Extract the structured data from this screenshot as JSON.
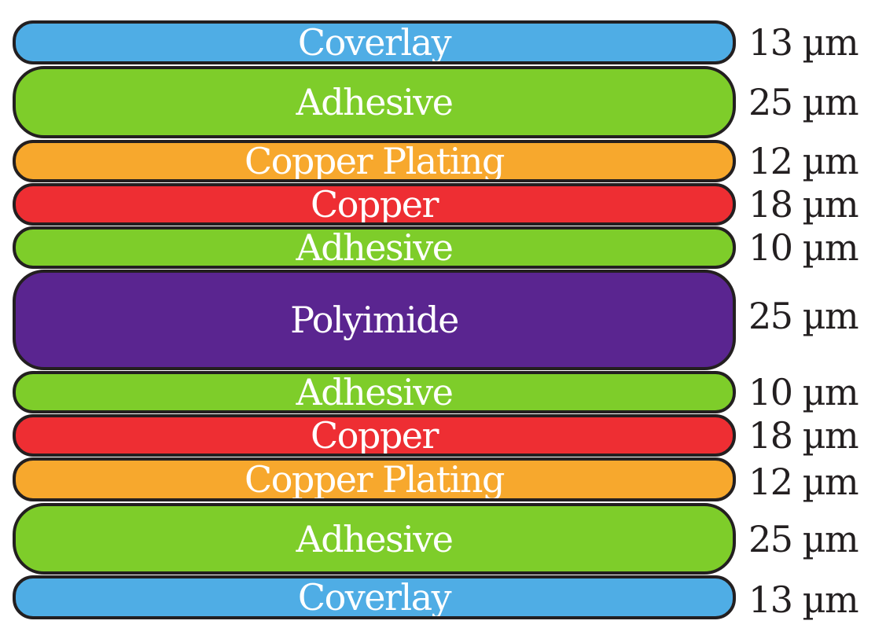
{
  "stackup": {
    "layers": [
      {
        "material": "Coverlay",
        "thickness": "13 µm",
        "color": "#4fade5"
      },
      {
        "material": "Adhesive",
        "thickness": "25 µm",
        "color": "#7ecd2a"
      },
      {
        "material": "Copper Plating",
        "thickness": "12 µm",
        "color": "#f7a82d"
      },
      {
        "material": "Copper",
        "thickness": "18 µm",
        "color": "#ee2e33"
      },
      {
        "material": "Adhesive",
        "thickness": "10 µm",
        "color": "#7ecd2a"
      },
      {
        "material": "Polyimide",
        "thickness": "25 µm",
        "color": "#5a2590"
      },
      {
        "material": "Adhesive",
        "thickness": "10 µm",
        "color": "#7ecd2a"
      },
      {
        "material": "Copper",
        "thickness": "18 µm",
        "color": "#ee2e33"
      },
      {
        "material": "Copper Plating",
        "thickness": "12 µm",
        "color": "#f7a82d"
      },
      {
        "material": "Adhesive",
        "thickness": "25 µm",
        "color": "#7ecd2a"
      },
      {
        "material": "Coverlay",
        "thickness": "13 µm",
        "color": "#4fade5"
      }
    ]
  }
}
